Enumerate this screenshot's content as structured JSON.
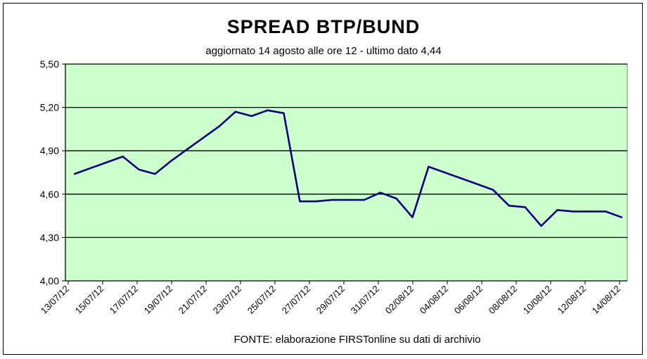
{
  "chart_data": {
    "type": "line",
    "title": "SPREAD  BTP/BUND",
    "subtitle": "aggiornato 14 agosto alle ore 12  - ultimo dato 4,44",
    "source": "FONTE: elaborazione FIRSTonline su dati di archivio",
    "xlabel": "",
    "ylabel": "",
    "ylim": [
      4.0,
      5.5
    ],
    "y_ticks": [
      "4,00",
      "4,30",
      "4,60",
      "4,90",
      "5,20",
      "5,50"
    ],
    "y_tick_values": [
      4.0,
      4.3,
      4.6,
      4.9,
      5.2,
      5.5
    ],
    "x_tick_labels": [
      "13/07/12",
      "15/07/12",
      "17/07/12",
      "19/07/12",
      "21/07/12",
      "23/07/12",
      "25/07/12",
      "27/07/12",
      "29/07/12",
      "31/07/12",
      "02/08/12",
      "04/08/12",
      "06/08/12",
      "08/08/12",
      "10/08/12",
      "12/08/12",
      "14/08/12"
    ],
    "grid": true,
    "plot_background": "#ccffcc",
    "line_color": "#000080",
    "series": [
      {
        "values": [
          4.74,
          4.78,
          4.82,
          4.86,
          4.77,
          4.74,
          4.83,
          4.91,
          4.99,
          5.07,
          5.17,
          5.14,
          5.18,
          5.16,
          4.55,
          4.55,
          4.56,
          4.56,
          4.56,
          4.61,
          4.57,
          4.44,
          4.79,
          4.75,
          4.71,
          4.67,
          4.63,
          4.52,
          4.51,
          4.38,
          4.49,
          4.48,
          4.48,
          4.48,
          4.44
        ]
      }
    ]
  }
}
